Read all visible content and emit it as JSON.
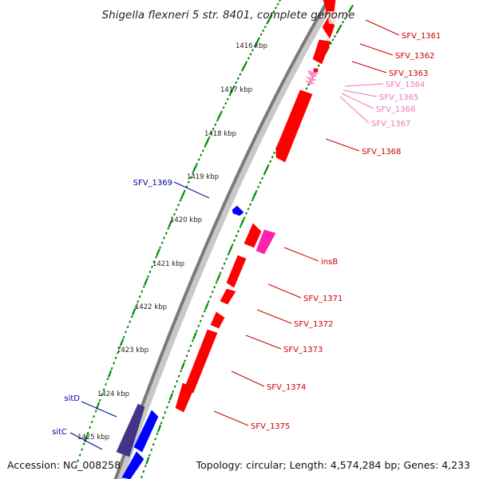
{
  "title": "Shigella flexneri 5 str. 8401, complete genome",
  "accession": "Accession: NC_008258",
  "topology": "Topology: circular; Length: 4,574,284 bp; Genes: 4,233",
  "kbp_ticks": [
    "1416 kbp",
    "1417 kbp",
    "1418 kbp",
    "1419 kbp",
    "1420 kbp",
    "1421 kbp",
    "1422 kbp",
    "1423 kbp",
    "1424 kbp",
    "1425 kbp"
  ],
  "genes": [
    {
      "label": "SFV_1361",
      "strand": "reverse",
      "color": "#ff0000",
      "label_color": "#cc0000"
    },
    {
      "label": "SFV_1362",
      "strand": "reverse",
      "color": "#ff0000",
      "label_color": "#cc0000"
    },
    {
      "label": "SFV_1363",
      "strand": "reverse",
      "color": "#ff0000",
      "label_color": "#cc0000"
    },
    {
      "label": "SFV_1364",
      "strand": "reverse",
      "color": "#ff88cc",
      "label_color": "#ee77bb"
    },
    {
      "label": "SFV_1365",
      "strand": "reverse",
      "color": "#ff88cc",
      "label_color": "#ee77bb"
    },
    {
      "label": "SFV_1366",
      "strand": "reverse",
      "color": "#ff88cc",
      "label_color": "#ee77bb"
    },
    {
      "label": "SFV_1367",
      "strand": "reverse",
      "color": "#ff88cc",
      "label_color": "#ee77bb"
    },
    {
      "label": "SFV_1368",
      "strand": "reverse",
      "color": "#ff0000",
      "label_color": "#cc0000"
    },
    {
      "label": "SFV_1369",
      "strand": "forward",
      "color": "#0000ff",
      "label_color": "#0000aa"
    },
    {
      "label": "insB",
      "strand": "reverse",
      "color": "#ff22aa",
      "label_color": "#cc0000"
    },
    {
      "label": "SFV_1371",
      "strand": "reverse",
      "color": "#ff0000",
      "label_color": "#cc0000"
    },
    {
      "label": "SFV_1372",
      "strand": "reverse",
      "color": "#ff0000",
      "label_color": "#cc0000"
    },
    {
      "label": "SFV_1373",
      "strand": "reverse",
      "color": "#ff0000",
      "label_color": "#cc0000"
    },
    {
      "label": "SFV_1374",
      "strand": "reverse",
      "color": "#ff0000",
      "label_color": "#cc0000"
    },
    {
      "label": "SFV_1375",
      "strand": "reverse",
      "color": "#ff0000",
      "label_color": "#cc0000"
    },
    {
      "label": "sitD",
      "strand": "forward",
      "color": "#443388",
      "label_color": "#0000aa"
    },
    {
      "label": "sitC",
      "strand": "forward",
      "color": "#0000ff",
      "label_color": "#0000aa"
    }
  ],
  "colors": {
    "backbone": "#7a7a7a",
    "backbone_shadow": "#c8c8c8",
    "tick": "#008800"
  }
}
